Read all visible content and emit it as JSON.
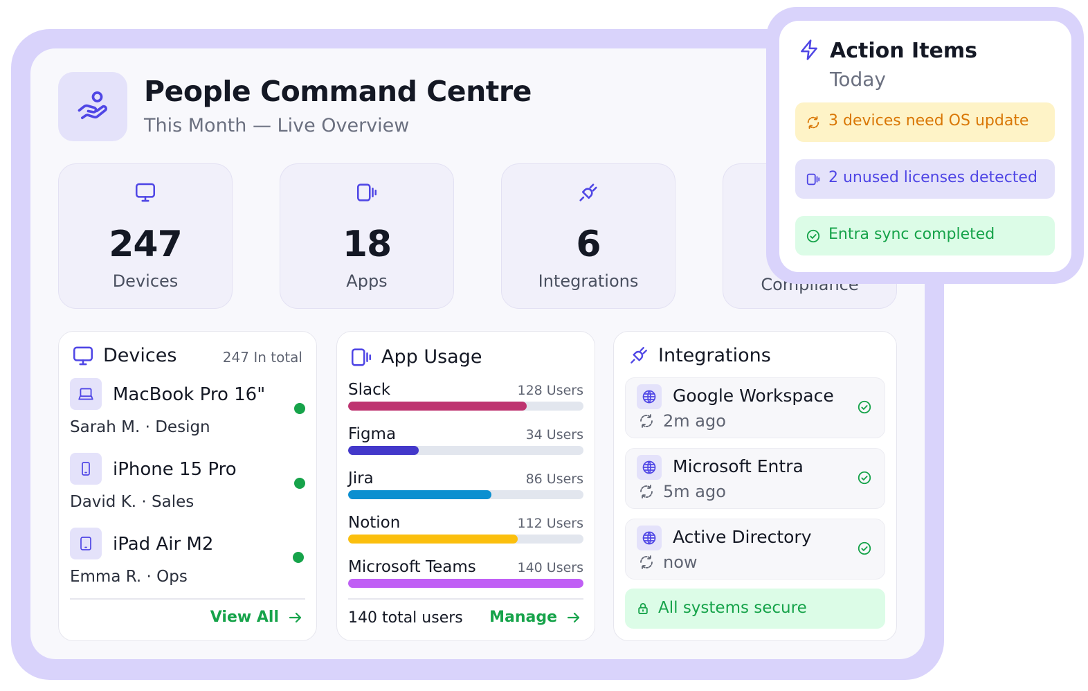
{
  "header": {
    "title": "People Command Centre",
    "subtitle": "This Month — Live Overview"
  },
  "stats": [
    {
      "value": "247",
      "label": "Devices",
      "icon": "monitor-icon"
    },
    {
      "value": "18",
      "label": "Apps",
      "icon": "apps-icon"
    },
    {
      "value": "6",
      "label": "Integrations",
      "icon": "plug-icon"
    },
    {
      "value": "",
      "label": "Compliance",
      "icon": "shield-icon"
    }
  ],
  "devices_panel": {
    "title": "Devices",
    "count": "247 In total",
    "items": [
      {
        "name": "MacBook Pro 16\"",
        "owner": "Sarah M. · Design",
        "icon": "laptop-icon",
        "status": "online"
      },
      {
        "name": "iPhone 15 Pro",
        "owner": "David K. · Sales",
        "icon": "phone-icon",
        "status": "online"
      },
      {
        "name": "iPad Air M2",
        "owner": "Emma R. · Ops",
        "icon": "tablet-icon",
        "status": "online"
      }
    ],
    "view_all": "View All"
  },
  "app_usage_panel": {
    "title": "App Usage",
    "apps": [
      {
        "name": "Slack",
        "users": "128 Users",
        "fill": 0.76,
        "color": "#be3470"
      },
      {
        "name": "Figma",
        "users": "34 Users",
        "fill": 0.3,
        "color": "#4338ca"
      },
      {
        "name": "Jira",
        "users": "86 Users",
        "fill": 0.61,
        "color": "#0b8fd0"
      },
      {
        "name": "Notion",
        "users": "112 Users",
        "fill": 0.72,
        "color": "#fbbf0d"
      },
      {
        "name": "Microsoft Teams",
        "users": "140 Users",
        "fill": 1.0,
        "color": "#c05ff5"
      }
    ],
    "total": "140 total users",
    "manage": "Manage"
  },
  "integrations_panel": {
    "title": "Integrations",
    "items": [
      {
        "name": "Google Workspace",
        "time": "2m ago"
      },
      {
        "name": "Microsoft Entra",
        "time": "5m ago"
      },
      {
        "name": "Active Directory",
        "time": "now"
      }
    ],
    "secure": "All systems secure"
  },
  "action_items": {
    "title": "Action Items",
    "subtitle": "Today",
    "alerts": [
      {
        "text": "3 devices need OS update",
        "bg": "#fef3c7",
        "color": "#d97706"
      },
      {
        "text": "2 unused licenses detected",
        "bg": "#e4e2fa",
        "color": "#4f46e5"
      },
      {
        "text": "Entra sync completed",
        "bg": "#dcfce7",
        "color": "#16a34a"
      }
    ]
  },
  "colors": {
    "accent": "#4f46e5",
    "success": "#16a34a",
    "frame": "#d9d3fb"
  }
}
